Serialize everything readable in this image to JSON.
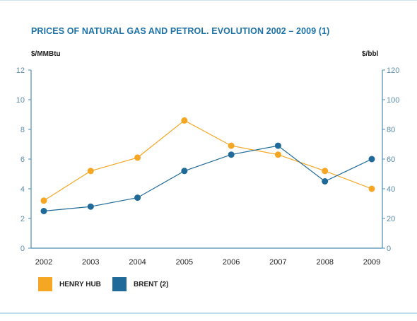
{
  "chart_data": {
    "type": "line",
    "title": "PRICES OF NATURAL GAS AND PETROL. EVOLUTION  2002 – 2009 (1)",
    "ylabel_left": "$/MMBtu",
    "ylabel_right": "$/bbl",
    "x": [
      "2002",
      "2003",
      "2004",
      "2005",
      "2006",
      "2007",
      "2008",
      "2009"
    ],
    "ylim_left": [
      0,
      12
    ],
    "ylim_right": [
      0,
      120
    ],
    "yticks_left": [
      "0",
      "2",
      "4",
      "6",
      "8",
      "10",
      "12"
    ],
    "yticks_right": [
      "0",
      "20",
      "40",
      "60",
      "80",
      "100",
      "120"
    ],
    "grid": false,
    "legend_position": "bottom-left",
    "series": [
      {
        "name": "HENRY HUB",
        "axis": "left",
        "color": "#f5a623",
        "values": [
          3.2,
          5.2,
          6.1,
          8.6,
          6.9,
          6.3,
          5.2,
          4.0
        ]
      },
      {
        "name": "BRENT (2)",
        "axis": "right",
        "color": "#1f6a98",
        "values": [
          25,
          28,
          34,
          52,
          63,
          69,
          45,
          60
        ]
      }
    ]
  },
  "colors": {
    "title": "#1d72a6",
    "axis": "#4b8bb0",
    "left_tick": "#5a8ba8",
    "right_tick": "#5a8ba8"
  }
}
